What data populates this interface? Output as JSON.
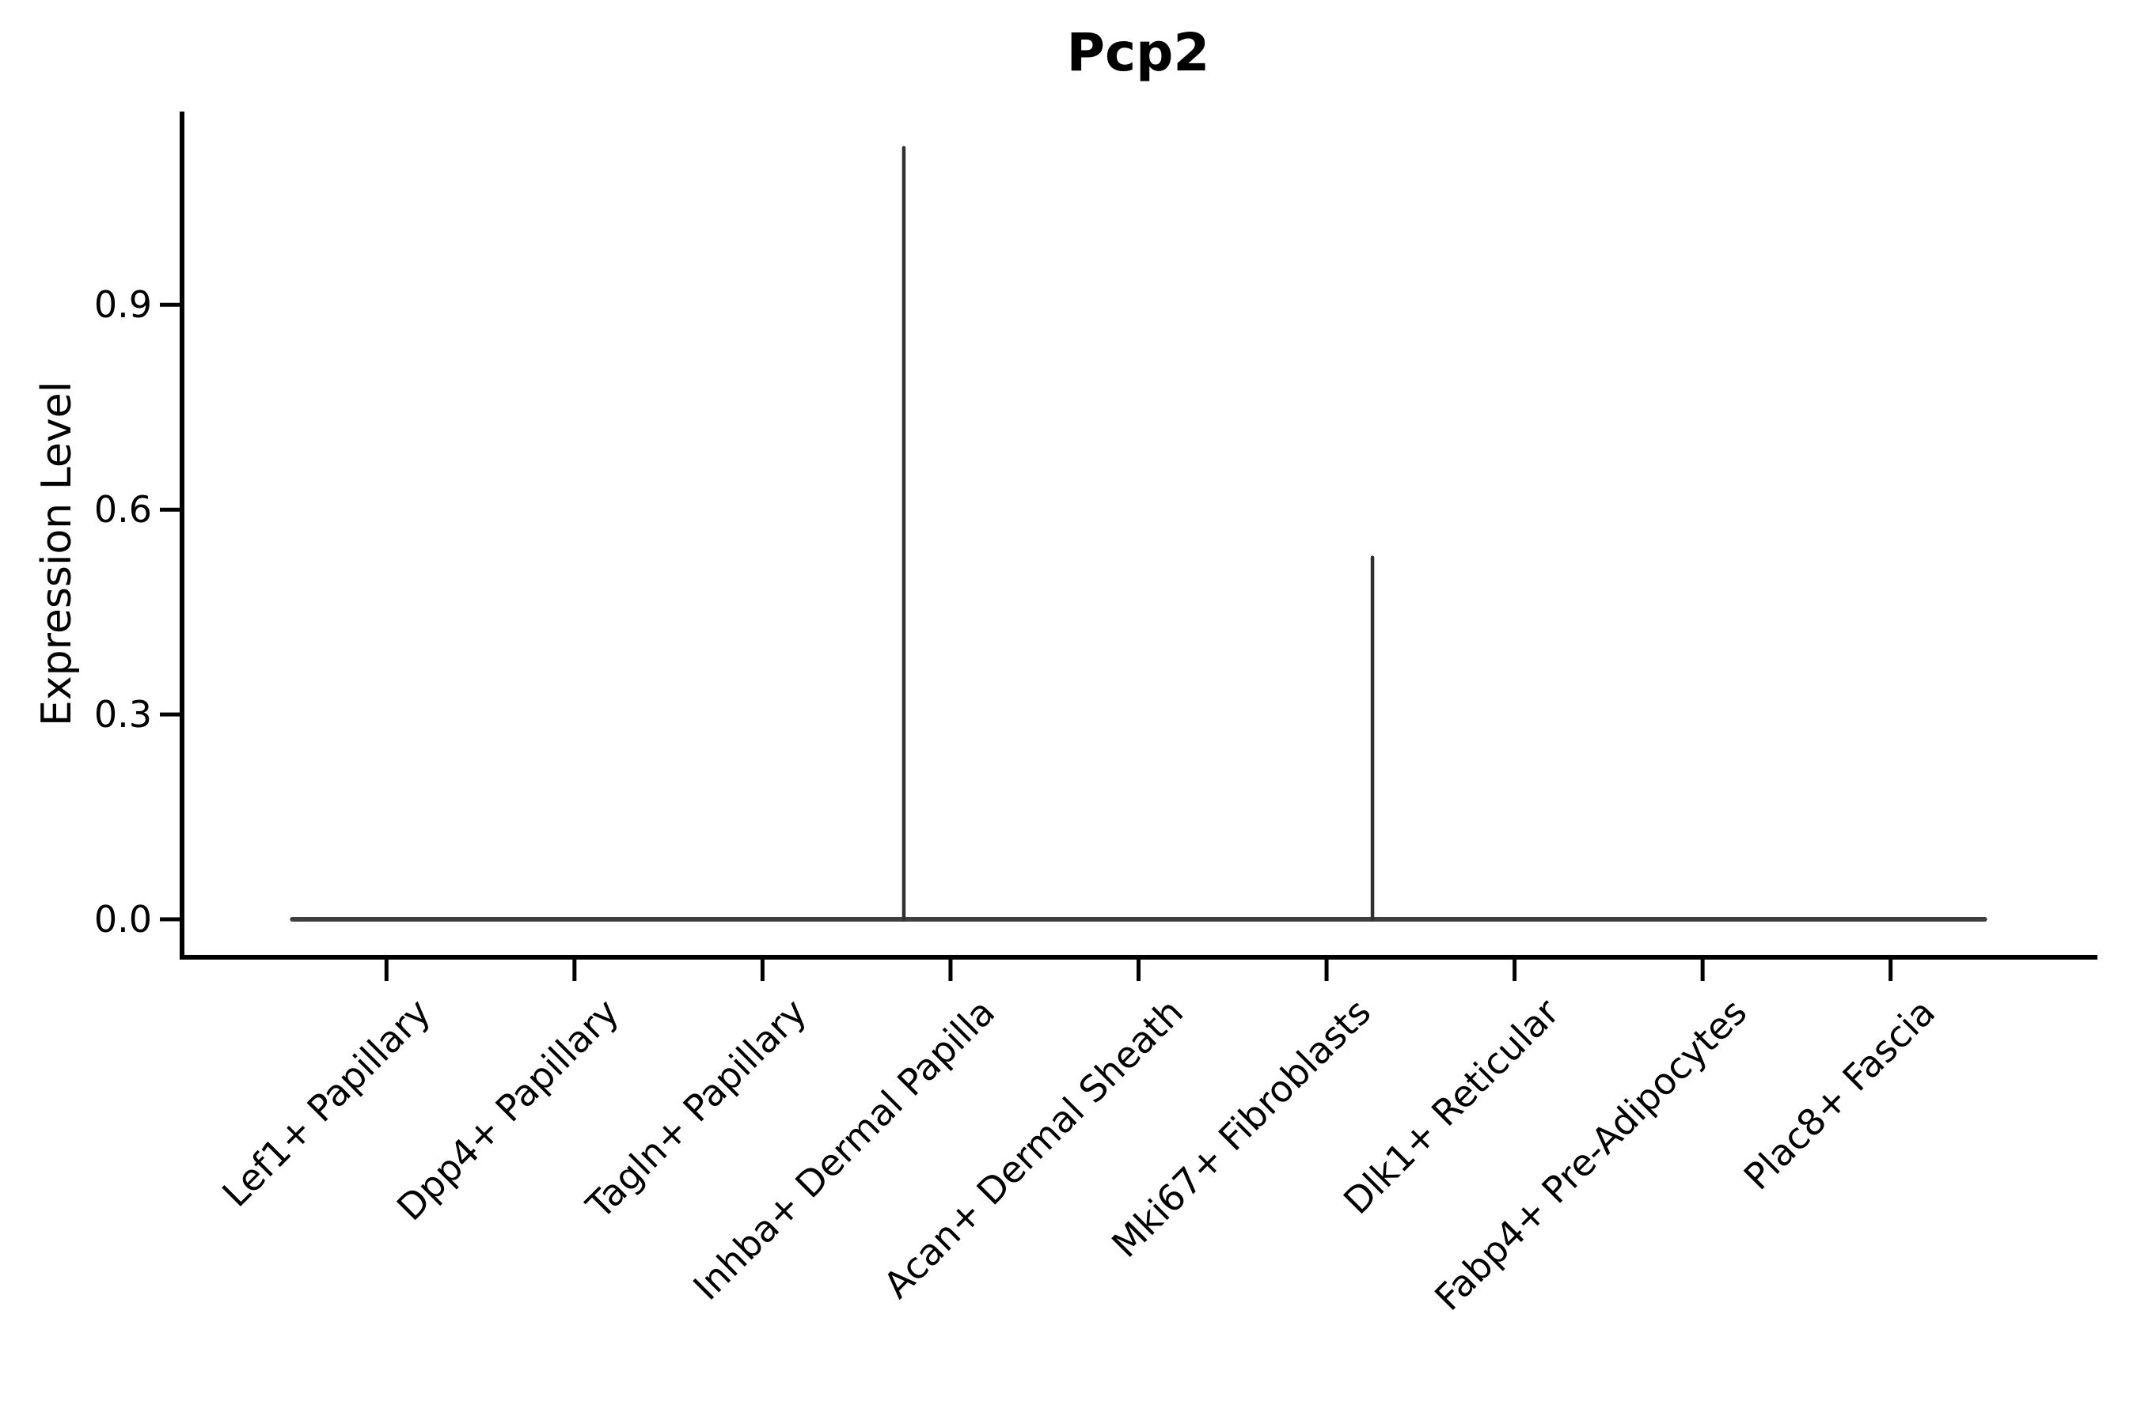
{
  "chart_data": {
    "type": "violin",
    "title": "Pcp2",
    "xlabel": "",
    "ylabel": "Expression Level",
    "categories": [
      "Lef1+ Papillary",
      "Dpp4+ Papillary",
      "Tagln+ Papillary",
      "Inhba+ Dermal Papilla",
      "Acan+ Dermal Sheath",
      "Mki67+ Fibroblasts",
      "Dlk1+ Reticular",
      "Fabp4+ Pre-Adipocytes",
      "Plac8+ Fascia"
    ],
    "baseline_value": 0.0,
    "max_expression": [
      0,
      0,
      0,
      1.13,
      0,
      0.53,
      0,
      0,
      0
    ],
    "ytick_values": [
      0.0,
      0.3,
      0.6,
      0.9
    ],
    "ytick_labels": [
      "0.0",
      "0.3",
      "0.6",
      "0.9"
    ],
    "ylim": [
      -0.06,
      1.18
    ],
    "grid": false,
    "legend_position": "none",
    "colors": {
      "violin_line": "#3f3f3f",
      "spike_line": "#303030",
      "axis": "#000000",
      "text": "#000000",
      "background": "#ffffff"
    }
  }
}
